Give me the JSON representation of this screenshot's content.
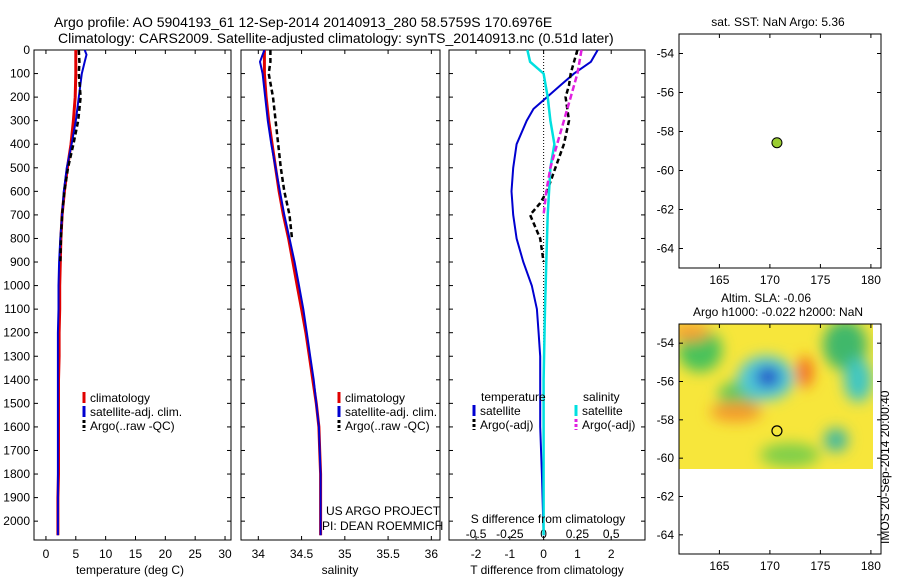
{
  "header": {
    "line1": "Argo profile: AO 5904193_61 12-Sep-2014 20140913_280 58.5759S 170.6976E",
    "line2": "Climatology: CARS2009. Satellite-adjusted climatology: synTS_20140913.nc (0.51d later)"
  },
  "colors": {
    "climatology": "#e00000",
    "satellite": "#0000d0",
    "argo": "#000000",
    "sal_satellite": "#00e0e0",
    "sal_argo": "#e020e0",
    "argo_dot": "#9acd32"
  },
  "chart_data": [
    {
      "type": "line",
      "xlabel": "temperature (deg C)",
      "xlim": [
        -2,
        31
      ],
      "xticks": [
        "0",
        "5",
        "10",
        "15",
        "20",
        "25",
        "30"
      ],
      "ylim": [
        0,
        2080
      ],
      "yticks": [
        "0",
        "100",
        "200",
        "300",
        "400",
        "500",
        "600",
        "700",
        "800",
        "900",
        "1000",
        "1100",
        "1200",
        "1300",
        "1400",
        "1500",
        "1600",
        "1700",
        "1800",
        "1900",
        "2000"
      ],
      "legend": [
        "climatology",
        "satellite-adj. clim.",
        "Argo(..raw -QC)"
      ],
      "series": [
        {
          "name": "climatology",
          "x": [
            5,
            5,
            5,
            4.9,
            4.6,
            4.2,
            3.6,
            3.1,
            2.7,
            2.5,
            2.4,
            2.3,
            2.3,
            2.2,
            2.2,
            2.1,
            2.1,
            2.1,
            2.1,
            2.1,
            2.0,
            2.0
          ],
          "y": [
            0,
            50,
            100,
            200,
            300,
            400,
            500,
            600,
            700,
            800,
            900,
            1000,
            1100,
            1200,
            1300,
            1400,
            1500,
            1600,
            1700,
            1800,
            1900,
            2060
          ]
        },
        {
          "name": "satellite-adj. clim.",
          "x": [
            6.5,
            6.8,
            6.5,
            6,
            5.5,
            5,
            4.3,
            3.5,
            3,
            2.7,
            2.4,
            2.2,
            2.1,
            2.1,
            2,
            2,
            2,
            2,
            2,
            2,
            2,
            2
          ],
          "y": [
            0,
            20,
            50,
            100,
            200,
            300,
            400,
            500,
            600,
            700,
            800,
            900,
            1000,
            1100,
            1200,
            1300,
            1400,
            1500,
            1600,
            1700,
            1800,
            2060
          ]
        },
        {
          "name": "Argo(..raw -QC)",
          "x": [
            5.5,
            5.6,
            5.5,
            5.8,
            5.4,
            4.6,
            3.7,
            3.1,
            2.7,
            2.5,
            2.4
          ],
          "y": [
            0,
            50,
            100,
            200,
            300,
            400,
            500,
            600,
            700,
            800,
            900
          ]
        }
      ]
    },
    {
      "type": "line",
      "xlabel": "salinity",
      "xlim": [
        33.8,
        36.1
      ],
      "xticks": [
        "34",
        "34.5",
        "35",
        "35.5",
        "36"
      ],
      "ylim": [
        0,
        2080
      ],
      "legend": [
        "climatology",
        "satellite-adj. clim.",
        "Argo(..raw -QC)"
      ],
      "annotation": [
        "US ARGO PROJECT",
        "PI: DEAN ROEMMICH"
      ],
      "series": [
        {
          "name": "climatology",
          "x": [
            34.07,
            34.07,
            34.07,
            34.09,
            34.12,
            34.16,
            34.2,
            34.24,
            34.29,
            34.35,
            34.4,
            34.45,
            34.5,
            34.55,
            34.59,
            34.63,
            34.67,
            34.7,
            34.71,
            34.72,
            34.72,
            34.72
          ],
          "y": [
            0,
            50,
            100,
            200,
            300,
            400,
            500,
            600,
            700,
            800,
            900,
            1000,
            1100,
            1200,
            1300,
            1400,
            1500,
            1600,
            1700,
            1800,
            1900,
            2060
          ]
        },
        {
          "name": "satellite-adj. clim.",
          "x": [
            34.07,
            34.02,
            34.05,
            34.08,
            34.11,
            34.15,
            34.2,
            34.25,
            34.3,
            34.36,
            34.42,
            34.47,
            34.52,
            34.56,
            34.6,
            34.64,
            34.67,
            34.7,
            34.71,
            34.72,
            34.72,
            34.72
          ],
          "y": [
            0,
            50,
            100,
            200,
            300,
            400,
            500,
            600,
            700,
            800,
            900,
            1000,
            1100,
            1200,
            1300,
            1400,
            1500,
            1600,
            1700,
            1800,
            1900,
            2060
          ]
        },
        {
          "name": "Argo(..raw -QC)",
          "x": [
            34.14,
            34.14,
            34.12,
            34.17,
            34.2,
            34.23,
            34.26,
            34.3,
            34.36,
            34.39
          ],
          "y": [
            0,
            50,
            100,
            200,
            300,
            400,
            500,
            600,
            700,
            800
          ]
        }
      ]
    },
    {
      "type": "line",
      "xlabel": "T difference from climatology",
      "xlabel_top": "S difference from climatology",
      "xlim": [
        -2.8,
        3
      ],
      "xticks": [
        "-2",
        "-1",
        "0",
        "1",
        "2"
      ],
      "xticks_s": [
        "-0.5",
        "-0.25",
        "0",
        "0.25",
        "0.5"
      ],
      "ylim": [
        0,
        2080
      ],
      "legend_left_title": "temperature",
      "legend_right_title": "salinity",
      "legend": [
        "satellite",
        "Argo(-adj)",
        "satellite",
        "Argo(-adj)"
      ],
      "series": [
        {
          "name": "temperature satellite",
          "x": [
            1.6,
            1.4,
            0.9,
            0.5,
            0.1,
            -0.3,
            -0.5,
            -0.8,
            -0.9,
            -0.95,
            -0.9,
            -0.8,
            -0.6,
            -0.35,
            -0.2,
            -0.15,
            -0.1,
            -0.1,
            -0.1,
            -0.05,
            0
          ],
          "y": [
            0,
            50,
            100,
            150,
            200,
            250,
            300,
            400,
            500,
            600,
            700,
            800,
            900,
            1000,
            1100,
            1200,
            1300,
            1400,
            1600,
            1800,
            2060
          ]
        },
        {
          "name": "temperature Argo(-adj)",
          "x": [
            1,
            0.9,
            0.8,
            0.75,
            0.65,
            0.75,
            0.6,
            0.35,
            0.1,
            -0.1,
            -0.4,
            -0.1,
            0
          ],
          "y": [
            0,
            50,
            100,
            150,
            200,
            300,
            400,
            500,
            600,
            650,
            700,
            800,
            900
          ]
        },
        {
          "name": "salinity satellite",
          "x": [
            -0.12,
            -0.1,
            0,
            0.03,
            0.05,
            0.08,
            0.05,
            0.03,
            0.02,
            0.01,
            0,
            0
          ],
          "y": [
            0,
            50,
            100,
            200,
            300,
            400,
            500,
            700,
            900,
            1100,
            1400,
            2060
          ]
        },
        {
          "name": "salinity Argo(-adj)",
          "x": [
            0.28,
            0.25,
            0.2,
            0.15,
            0.1,
            0.05,
            0.02,
            0
          ],
          "y": [
            0,
            100,
            200,
            300,
            400,
            500,
            600,
            700
          ]
        }
      ]
    },
    {
      "type": "scatter",
      "title": "sat. SST: NaN Argo: 5.36",
      "xlim": [
        161,
        181
      ],
      "ylim": [
        -65,
        -53
      ],
      "xticks": [
        "165",
        "170",
        "175",
        "180"
      ],
      "yticks": [
        "-54",
        "-56",
        "-58",
        "-60",
        "-62",
        "-64"
      ],
      "points": [
        {
          "x": 170.6976,
          "y": -58.5759
        }
      ]
    },
    {
      "type": "heatmap",
      "title": "Altim. SLA: -0.06",
      "subtitle": "Argo h1000: -0.022 h2000: NaN",
      "xlim": [
        161,
        181
      ],
      "ylim": [
        -65,
        -53
      ],
      "xticks": [
        "165",
        "170",
        "175",
        "180"
      ],
      "yticks": [
        "-54",
        "-56",
        "-58",
        "-60",
        "-62",
        "-64"
      ],
      "data_extent": {
        "lon": [
          161,
          180
        ],
        "lat": [
          -60,
          -53
        ]
      },
      "points": [
        {
          "x": 170.6976,
          "y": -58.5759
        }
      ],
      "side_label": "IMOS 20-Sep-2014 20:00:40"
    }
  ]
}
